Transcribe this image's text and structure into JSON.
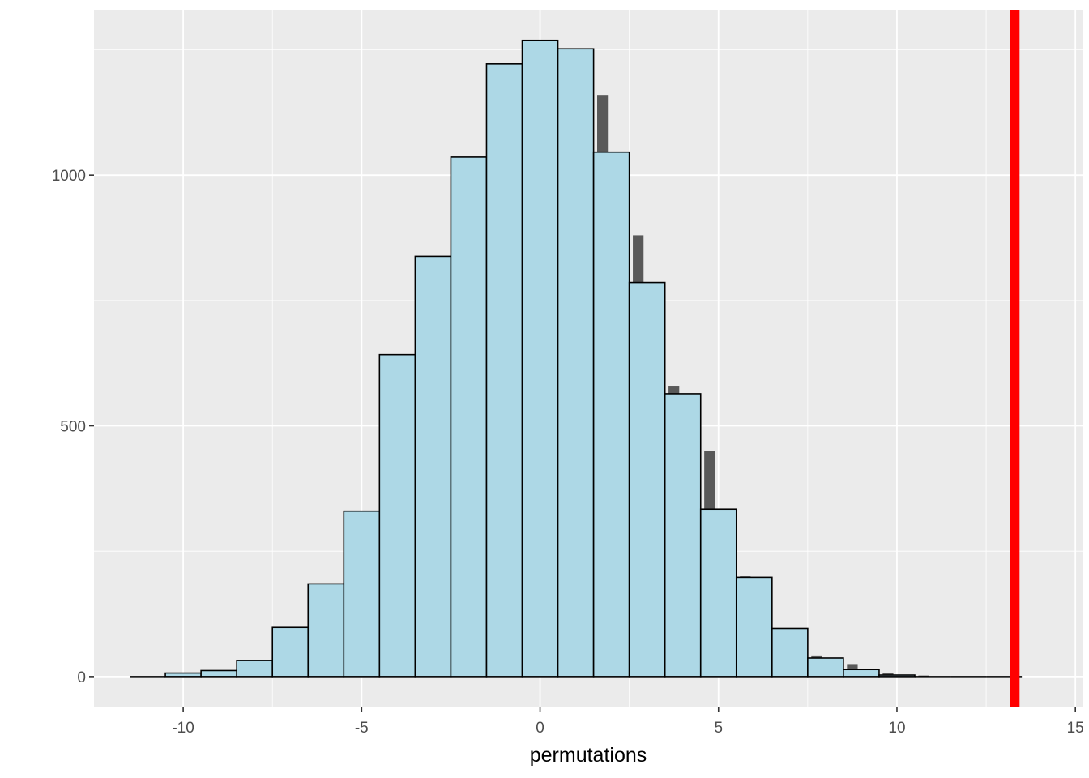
{
  "chart_data": {
    "type": "bar",
    "subtype": "histogram",
    "title": "",
    "xlabel": "permutations",
    "ylabel": "",
    "xlim": [
      -12.5,
      15.2
    ],
    "ylim": [
      -60,
      1330
    ],
    "x_ticks": [
      -10,
      -5,
      0,
      5,
      10,
      15
    ],
    "x_tick_labels": [
      "-10",
      "-5",
      "0",
      "5",
      "10",
      "15"
    ],
    "y_ticks": [
      0,
      500,
      1000
    ],
    "y_tick_labels": [
      "0",
      "500",
      "1000"
    ],
    "y_minor_ticks": [
      250,
      750,
      1250
    ],
    "x_minor_ticks": [
      -7.5,
      -2.5,
      2.5,
      7.5,
      12.5
    ],
    "grid": true,
    "background": "#ebebeb",
    "bin_width": 1,
    "series": [
      {
        "role": "underlying",
        "fill": "#595959",
        "bins": [
          {
            "x0": -11.4,
            "x1": -11.1,
            "count": 0
          },
          {
            "x0": -10.4,
            "x1": -10.1,
            "count": 4
          },
          {
            "x0": -9.4,
            "x1": -9.1,
            "count": 8
          },
          {
            "x0": -8.4,
            "x1": -8.1,
            "count": 16
          },
          {
            "x0": -7.4,
            "x1": -7.1,
            "count": 47
          },
          {
            "x0": -6.4,
            "x1": -6.1,
            "count": 100
          },
          {
            "x0": -5.4,
            "x1": -5.1,
            "count": 170
          },
          {
            "x0": -4.4,
            "x1": -4.1,
            "count": 455
          },
          {
            "x0": -3.4,
            "x1": -3.1,
            "count": 650
          },
          {
            "x0": -2.4,
            "x1": -2.1,
            "count": 800
          },
          {
            "x0": -1.4,
            "x1": -1.1,
            "count": 1000
          },
          {
            "x0": -0.4,
            "x1": -0.1,
            "count": 1250
          },
          {
            "x0": 0.6,
            "x1": 0.9,
            "count": 1240
          },
          {
            "x0": 1.6,
            "x1": 1.9,
            "count": 1160
          },
          {
            "x0": 2.6,
            "x1": 2.9,
            "count": 880
          },
          {
            "x0": 3.6,
            "x1": 3.9,
            "count": 580
          },
          {
            "x0": 4.6,
            "x1": 4.9,
            "count": 450
          },
          {
            "x0": 5.6,
            "x1": 5.9,
            "count": 200
          },
          {
            "x0": 6.6,
            "x1": 6.9,
            "count": 90
          },
          {
            "x0": 7.6,
            "x1": 7.9,
            "count": 42
          },
          {
            "x0": 8.6,
            "x1": 8.9,
            "count": 25
          },
          {
            "x0": 9.6,
            "x1": 9.9,
            "count": 7
          },
          {
            "x0": 10.6,
            "x1": 10.9,
            "count": 2
          }
        ]
      },
      {
        "role": "histogram",
        "fill": "#add8e6",
        "stroke": "#000000",
        "bins": [
          {
            "x0": -11.5,
            "x1": -10.5,
            "count": 0
          },
          {
            "x0": -10.5,
            "x1": -9.5,
            "count": 7
          },
          {
            "x0": -9.5,
            "x1": -8.5,
            "count": 12
          },
          {
            "x0": -8.5,
            "x1": -7.5,
            "count": 32
          },
          {
            "x0": -7.5,
            "x1": -6.5,
            "count": 98
          },
          {
            "x0": -6.5,
            "x1": -5.5,
            "count": 185
          },
          {
            "x0": -5.5,
            "x1": -4.5,
            "count": 330
          },
          {
            "x0": -4.5,
            "x1": -3.5,
            "count": 642
          },
          {
            "x0": -3.5,
            "x1": -2.5,
            "count": 838
          },
          {
            "x0": -2.5,
            "x1": -1.5,
            "count": 1036
          },
          {
            "x0": -1.5,
            "x1": -0.5,
            "count": 1222
          },
          {
            "x0": -0.5,
            "x1": 0.5,
            "count": 1269
          },
          {
            "x0": 0.5,
            "x1": 1.5,
            "count": 1252
          },
          {
            "x0": 1.5,
            "x1": 2.5,
            "count": 1046
          },
          {
            "x0": 2.5,
            "x1": 3.5,
            "count": 786
          },
          {
            "x0": 3.5,
            "x1": 4.5,
            "count": 564
          },
          {
            "x0": 4.5,
            "x1": 5.5,
            "count": 334
          },
          {
            "x0": 5.5,
            "x1": 6.5,
            "count": 198
          },
          {
            "x0": 6.5,
            "x1": 7.5,
            "count": 96
          },
          {
            "x0": 7.5,
            "x1": 8.5,
            "count": 37
          },
          {
            "x0": 8.5,
            "x1": 9.5,
            "count": 14
          },
          {
            "x0": 9.5,
            "x1": 10.5,
            "count": 3
          },
          {
            "x0": 10.5,
            "x1": 11.5,
            "count": 0
          },
          {
            "x0": 11.5,
            "x1": 12.5,
            "count": 0
          },
          {
            "x0": 12.5,
            "x1": 13.5,
            "count": 0
          }
        ]
      }
    ],
    "reference_line": {
      "x": 13.3,
      "color": "#ff0000"
    }
  }
}
